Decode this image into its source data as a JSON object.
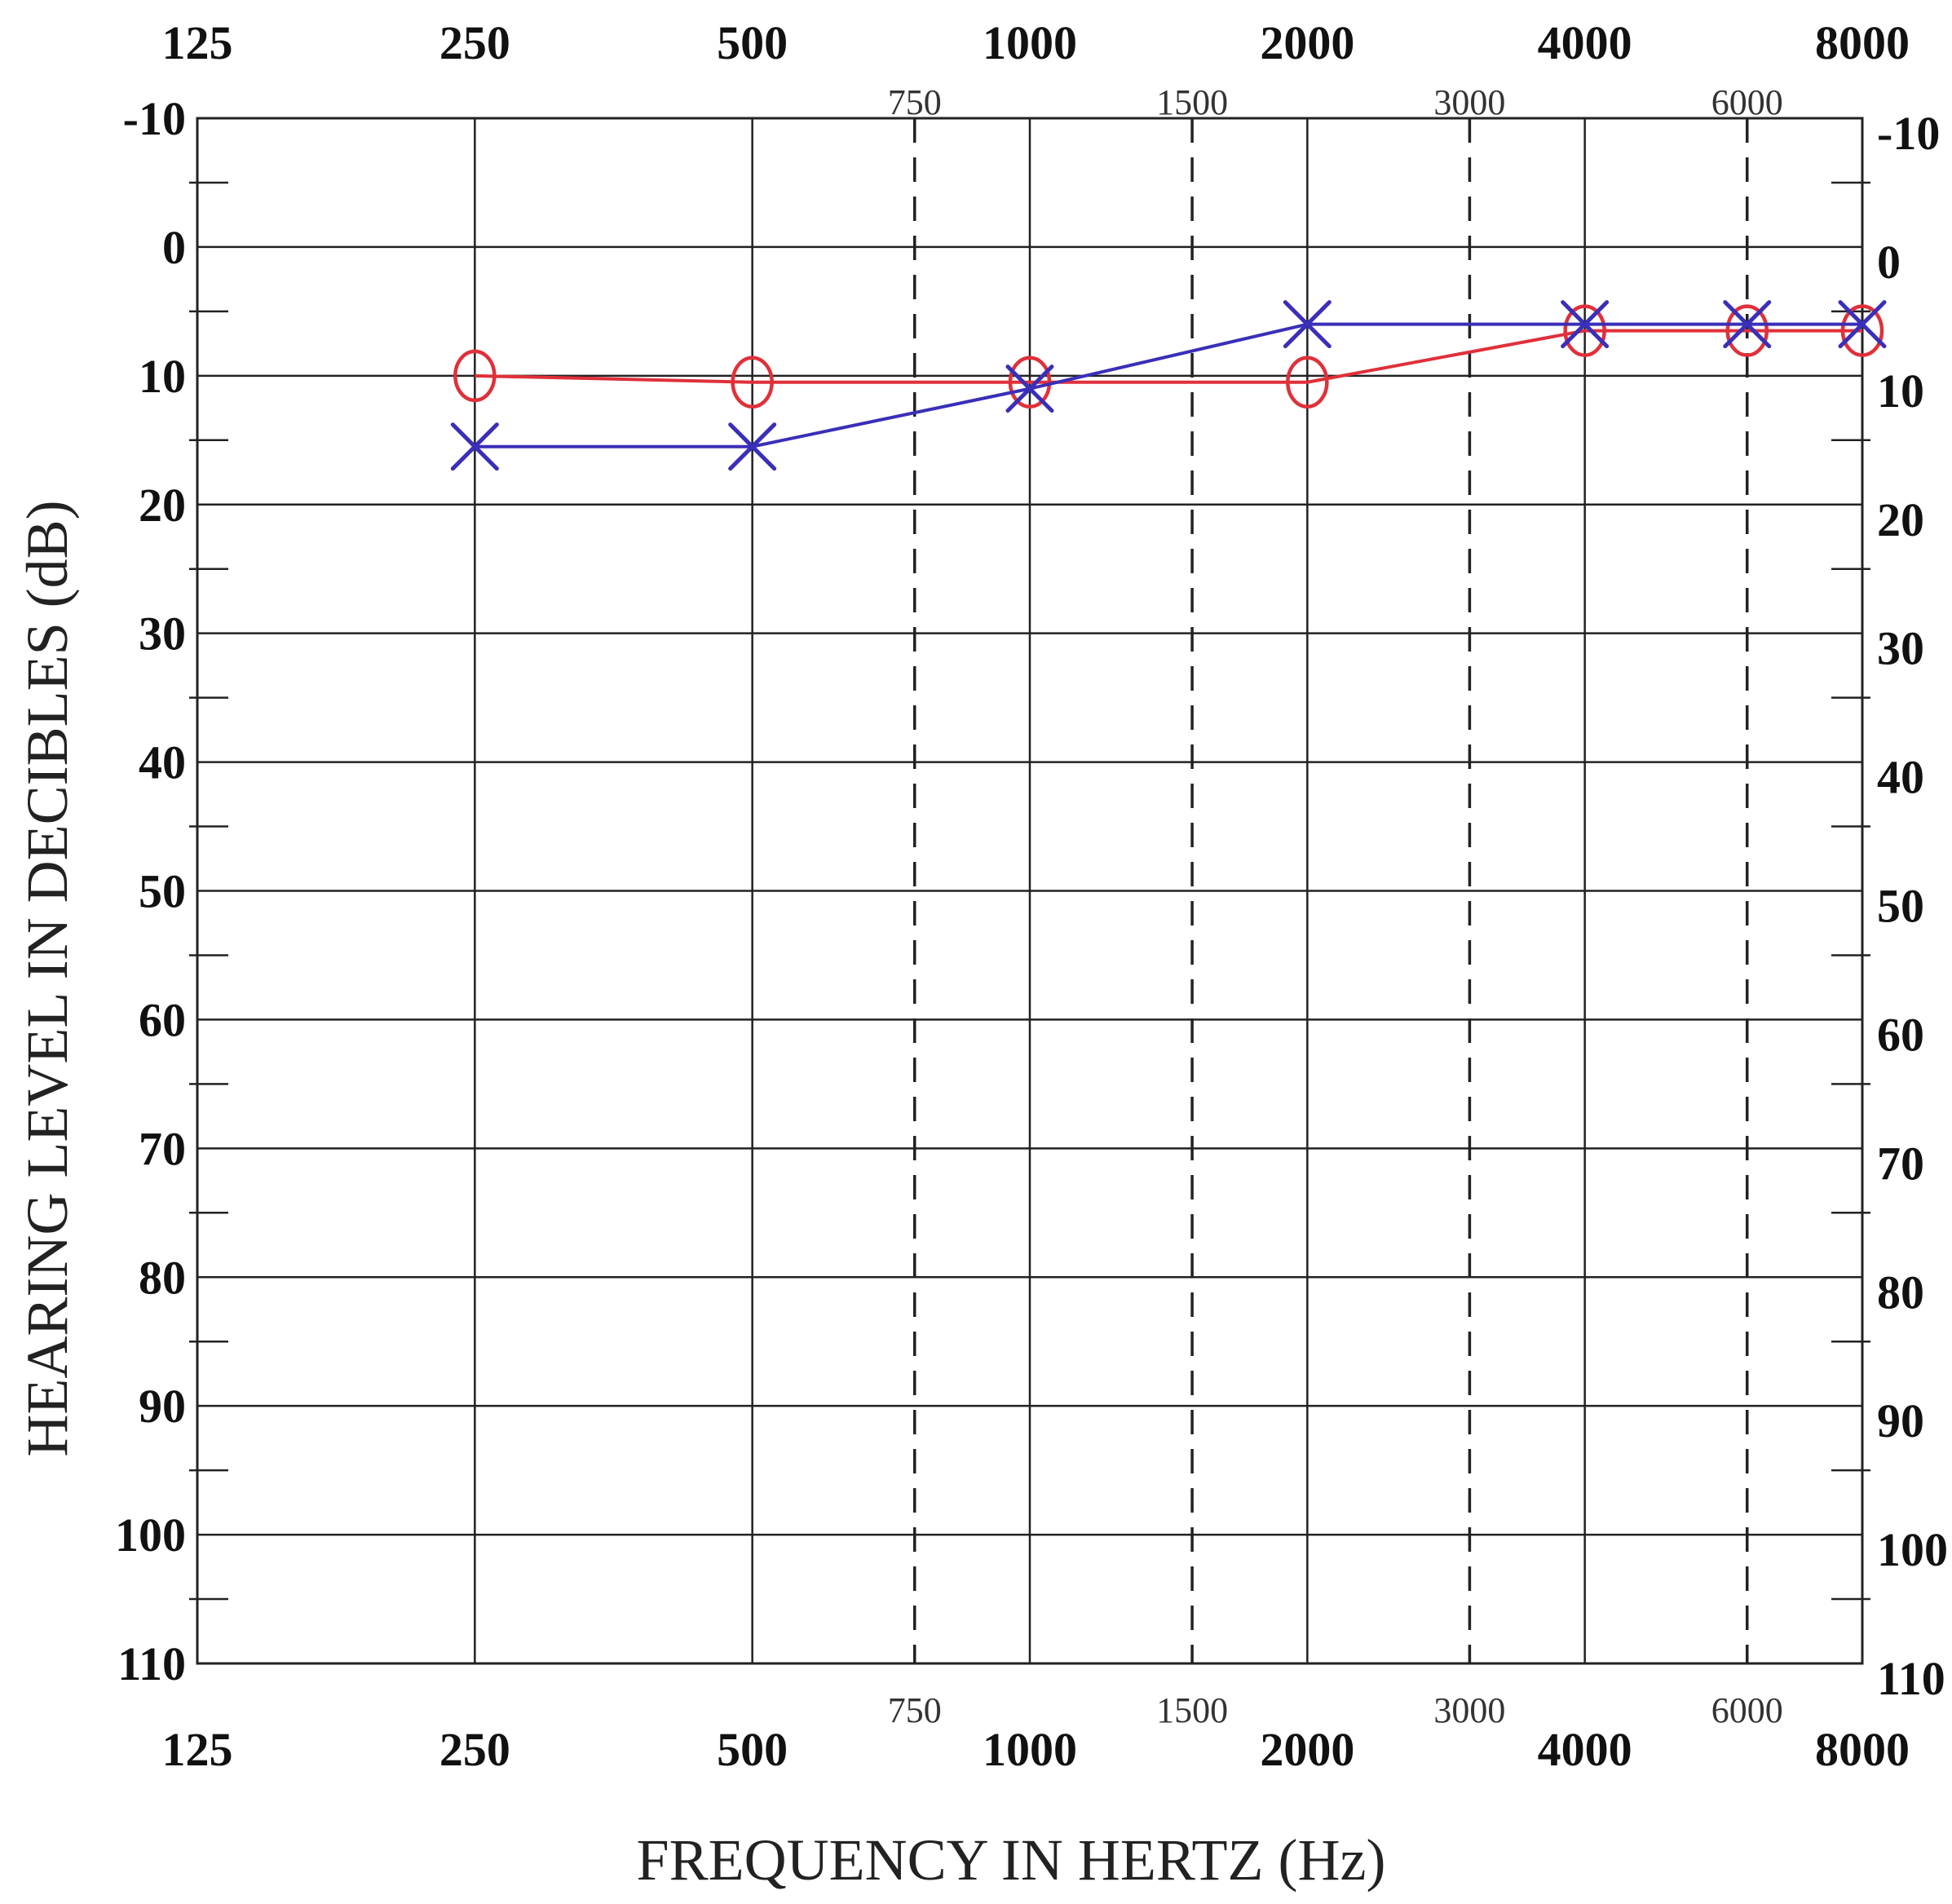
{
  "chart_data": {
    "type": "line",
    "xlabel": "FREQUENCY IN HERTZ  (Hz)",
    "ylabel": "HEARING LEVEL IN DECIBLES (dB)",
    "x_scale": "log2",
    "xlim": [
      125,
      8000
    ],
    "ylim": [
      -10,
      110
    ],
    "y_inverted": true,
    "x_major_ticks": [
      "125",
      "250",
      "500",
      "1000",
      "2000",
      "4000",
      "8000"
    ],
    "x_minor_ticks": [
      "750",
      "1500",
      "3000",
      "6000"
    ],
    "y_ticks": [
      "-10",
      "0",
      "10",
      "20",
      "30",
      "40",
      "50",
      "60",
      "70",
      "80",
      "90",
      "100",
      "110"
    ],
    "grid": true,
    "series": [
      {
        "marker": "O",
        "color": "#e0303a",
        "x": [
          250,
          500,
          1000,
          2000,
          4000,
          6000,
          8000
        ],
        "y": [
          10,
          10.5,
          10.5,
          10.5,
          6.5,
          6.5,
          6.5
        ]
      },
      {
        "marker": "X",
        "color": "#3a2fb8",
        "x": [
          250,
          500,
          1000,
          2000,
          4000,
          6000,
          8000
        ],
        "y": [
          15.5,
          15.5,
          11,
          6,
          6,
          6,
          6
        ]
      }
    ]
  }
}
